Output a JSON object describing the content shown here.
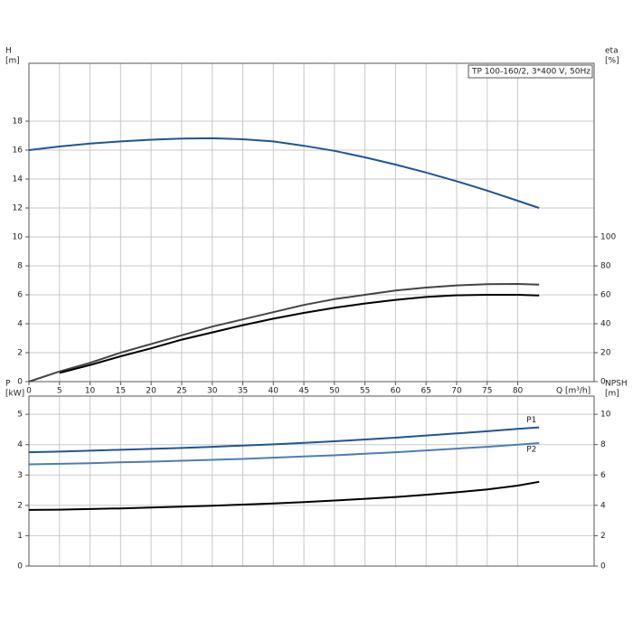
{
  "chart_data": [
    {
      "type": "line",
      "title": "TP 100-160/2, 3*400 V, 50Hz",
      "ylabel": [
        "H",
        "[m]"
      ],
      "y2label": [
        "eta",
        "[%]"
      ],
      "xlabel": "Q [m³/h]",
      "x": [
        0,
        5,
        10,
        15,
        20,
        25,
        30,
        35,
        40,
        45,
        50,
        55,
        60,
        65,
        70,
        75,
        80,
        83.5
      ],
      "xlim": [
        0,
        92.5
      ],
      "xticks": [
        0,
        5,
        10,
        15,
        20,
        25,
        30,
        35,
        40,
        45,
        50,
        55,
        60,
        65,
        70,
        75,
        80
      ],
      "ylim": [
        0,
        22
      ],
      "yticks": [
        0,
        2,
        4,
        6,
        8,
        10,
        12,
        14,
        16,
        18
      ],
      "y2lim": [
        0,
        220
      ],
      "y2ticks": [
        0,
        20,
        40,
        60,
        80,
        100
      ],
      "grid": true,
      "series": [
        {
          "color": "#1f5596",
          "values": [
            16.0,
            16.25,
            16.45,
            16.6,
            16.72,
            16.8,
            16.82,
            16.75,
            16.6,
            16.3,
            15.95,
            15.5,
            15.0,
            14.45,
            13.85,
            13.2,
            12.5,
            12.0
          ]
        },
        {
          "color": "#444444",
          "axis": "y2",
          "values": [
            0,
            7,
            13,
            20,
            26,
            32,
            38,
            43,
            48,
            53,
            57,
            60,
            63,
            65,
            66.5,
            67.3,
            67.5,
            67
          ]
        },
        {
          "color": "#000000",
          "axis": "y2",
          "values": [
            null,
            6,
            11.5,
            17.5,
            23,
            29,
            34,
            39,
            43.5,
            47.5,
            51,
            54,
            56.5,
            58.5,
            59.7,
            60,
            60,
            59.5
          ]
        }
      ]
    },
    {
      "type": "line",
      "ylabel": [
        "P",
        "[kW]"
      ],
      "y2label": [
        "NPSH",
        "[m]"
      ],
      "x": [
        0,
        5,
        10,
        15,
        20,
        25,
        30,
        35,
        40,
        45,
        50,
        55,
        60,
        65,
        70,
        75,
        80,
        83.5
      ],
      "xlim": [
        0,
        92.5
      ],
      "ylim": [
        0,
        5.6
      ],
      "yticks": [
        0,
        1,
        2,
        3,
        4,
        5
      ],
      "y2lim": [
        0,
        11.2
      ],
      "y2ticks": [
        0,
        2,
        4,
        6,
        8,
        10
      ],
      "grid": true,
      "series": [
        {
          "name": "P1",
          "color": "#1f5596",
          "values": [
            3.75,
            3.77,
            3.8,
            3.83,
            3.86,
            3.89,
            3.93,
            3.97,
            4.01,
            4.06,
            4.11,
            4.17,
            4.23,
            4.3,
            4.37,
            4.44,
            4.52,
            4.57
          ]
        },
        {
          "name": "P2",
          "color": "#4d7db4",
          "values": [
            3.35,
            3.37,
            3.39,
            3.42,
            3.44,
            3.47,
            3.5,
            3.53,
            3.57,
            3.61,
            3.65,
            3.7,
            3.75,
            3.81,
            3.87,
            3.93,
            4.0,
            4.05
          ]
        },
        {
          "color": "#000000",
          "axis": "y2",
          "values": [
            3.7,
            3.72,
            3.76,
            3.8,
            3.86,
            3.92,
            3.98,
            4.05,
            4.13,
            4.22,
            4.32,
            4.43,
            4.55,
            4.7,
            4.86,
            5.05,
            5.3,
            5.55
          ]
        }
      ]
    }
  ]
}
